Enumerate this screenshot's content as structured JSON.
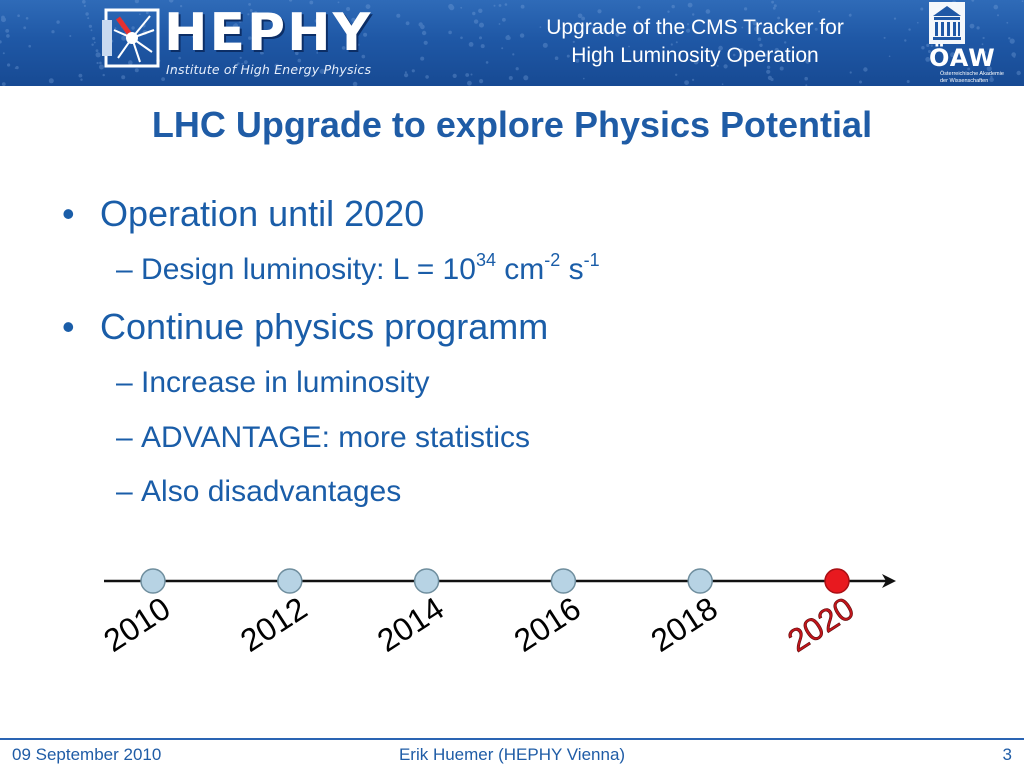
{
  "header": {
    "logo_text": "HEPHY",
    "logo_subtitle": "Institute of High Energy Physics",
    "title_line1": "Upgrade of the CMS Tracker for",
    "title_line2": "High Luminosity Operation",
    "oaw_logo_text": "ÖAW",
    "oaw_subtitle_line1": "Österreichische Akademie",
    "oaw_subtitle_line2": "der Wissenschaften",
    "background_color": "#1f58a6"
  },
  "slide": {
    "title": "LHC Upgrade to explore Physics Potential",
    "bullets": [
      {
        "bullet": "•",
        "text": "Operation until 2020"
      },
      {
        "dash": "–",
        "text_prefix": "Design luminosity: L = 10",
        "exp1": "34",
        "unit1": " cm",
        "exp2": "-2",
        "unit2": " s",
        "exp3": "-1"
      },
      {
        "bullet": "•",
        "text": "Continue physics programm"
      },
      {
        "dash": "–",
        "text": "Increase in luminosity"
      },
      {
        "dash": "–",
        "text": "ADVANTAGE: more statistics"
      },
      {
        "dash": "–",
        "text": "Also disadvantages"
      }
    ]
  },
  "timeline": {
    "years": [
      "2010",
      "2012",
      "2014",
      "2016",
      "2018",
      "2020"
    ],
    "highlight_year": "2020",
    "node_color": "#b7d3e4",
    "highlight_color": "#e8191f",
    "highlight_text_color": "#c0151b"
  },
  "footer": {
    "date": "09 September 2010",
    "author": "Erik Huemer (HEPHY Vienna)",
    "page": "3"
  }
}
